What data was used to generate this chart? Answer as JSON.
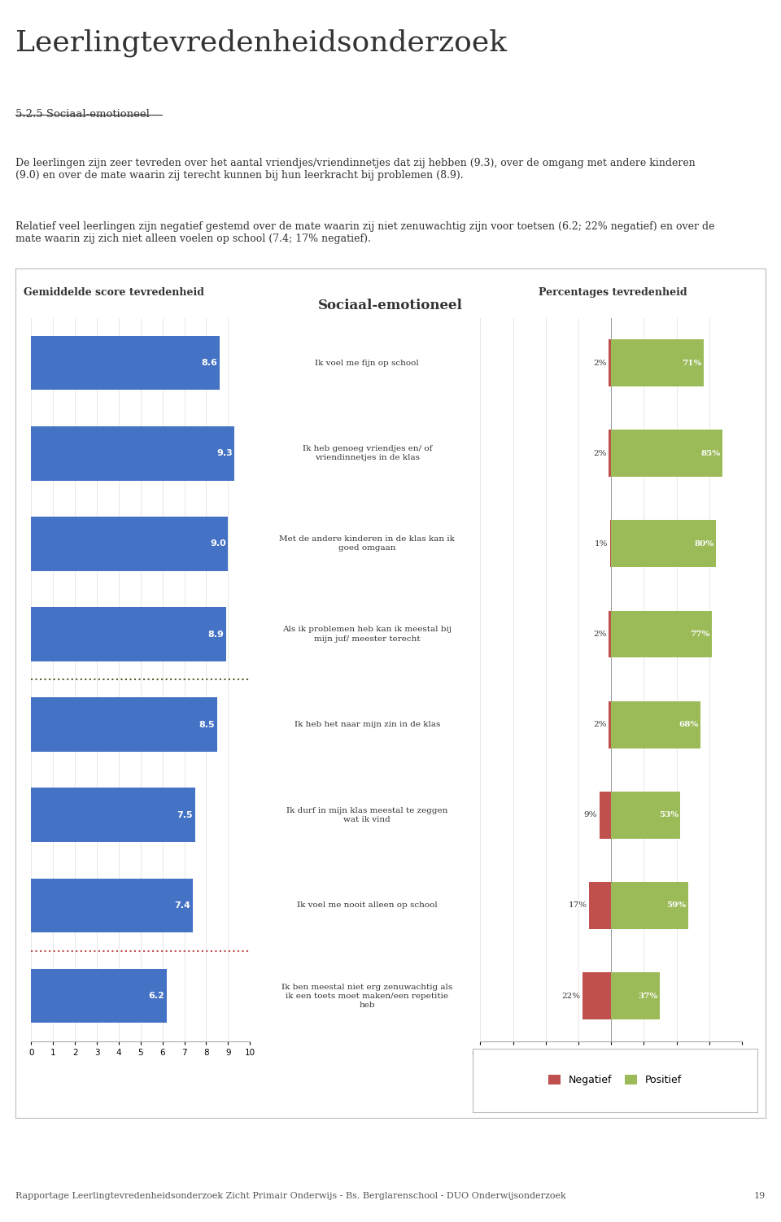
{
  "page_title": "Leerlingtevredenheidsonderzoek",
  "section_title": "5.2.5 Sociaal-emotioneel",
  "paragraph1": "De leerlingen zijn zeer tevreden over het aantal vriendjes/vriendinnetjes dat zij hebben (9.3), over de omgang met andere kinderen\n(9.0) en over de mate waarin zij terecht kunnen bij hun leerkracht bij problemen (8.9).",
  "paragraph2": "Relatief veel leerlingen zijn negatief gestemd over de mate waarin zij niet zenuwachtig zijn voor toetsen (6.2; 22% negatief) en over de\nmate waarin zij zich niet alleen voelen op school (7.4; 17% negatief).",
  "chart_title": "Sociaal-emotioneel",
  "left_chart_title": "Gemiddelde score tevredenheid",
  "right_chart_title": "Percentages tevredenheid",
  "footer": "Rapportage Leerlingtevredenheidsonderzoek Zicht Primair Onderwijs - Bs. Berglarenschool - DUO Onderwijsonderzoek",
  "page_number": "19",
  "bar_labels": [
    "Ik voel me fijn op school",
    "Ik heb genoeg vriendjes en/ of\nvriendinnetjes in de klas",
    "Met de andere kinderen in de klas kan ik\ngoed omgaan",
    "Als ik problemen heb kan ik meestal bij\nmijn juf/ meester terecht",
    "Ik heb het naar mijn zin in de klas",
    "Ik durf in mijn klas meestal te zeggen\nwat ik vind",
    "Ik voel me nooit alleen op school",
    "Ik ben meestal niet erg zenuwachtig als\nik een toets moet maken/een repetitie\nheb"
  ],
  "scores": [
    8.6,
    9.3,
    9.0,
    8.9,
    8.5,
    7.5,
    7.4,
    6.2
  ],
  "neg_pct": [
    2,
    2,
    1,
    2,
    2,
    9,
    17,
    22
  ],
  "pos_pct": [
    71,
    85,
    80,
    77,
    68,
    53,
    59,
    37
  ],
  "bar_color": "#4472C4",
  "neg_color": "#C0504D",
  "pos_color": "#9BBB59",
  "green_line_color": "#4F6228",
  "red_line_color": "#C0504D",
  "bg_color": "#FFFFFF",
  "box_border": "#BBBBBB",
  "header_line_color": "#8DB04A",
  "duo_green": "#8DB04A"
}
